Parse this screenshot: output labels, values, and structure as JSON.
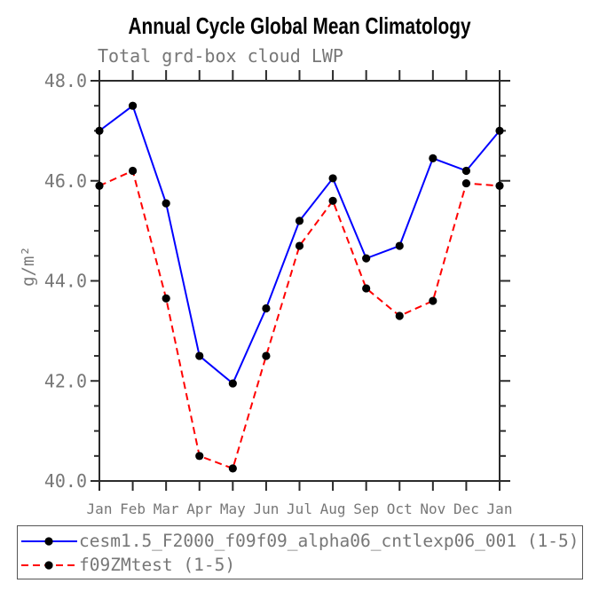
{
  "chart_data": {
    "type": "line",
    "title": "Annual Cycle Global Mean Climatology",
    "subtitle": "Total grd-box cloud LWP",
    "xlabel": "",
    "ylabel": "g/m²",
    "categories": [
      "Jan",
      "Feb",
      "Mar",
      "Apr",
      "May",
      "Jun",
      "Jul",
      "Aug",
      "Sep",
      "Oct",
      "Nov",
      "Dec",
      "Jan"
    ],
    "series": [
      {
        "name": "cesm1.5_F2000_f09f09_alpha06_cntlexp06_001 (1-5)",
        "color": "#0000ff",
        "style": "solid",
        "marker": "circle",
        "marker_color": "#000000",
        "values": [
          47.0,
          47.5,
          45.55,
          42.5,
          41.95,
          43.45,
          45.2,
          46.05,
          44.45,
          44.7,
          46.45,
          46.2,
          47.0
        ]
      },
      {
        "name": "f09ZMtest (1-5)",
        "color": "#ff0000",
        "style": "dashed",
        "marker": "circle",
        "marker_color": "#000000",
        "values": [
          45.9,
          46.2,
          43.65,
          40.5,
          40.25,
          42.5,
          44.7,
          45.6,
          43.85,
          43.3,
          43.6,
          45.95,
          45.9
        ]
      }
    ],
    "ylim": [
      40.0,
      48.0
    ],
    "yticks_major": [
      40.0,
      42.0,
      44.0,
      46.0,
      48.0
    ],
    "ytick_labels": [
      "40.0",
      "42.0",
      "44.0",
      "46.0",
      "48.0"
    ],
    "ytick_minor_step": 0.5,
    "grid": false,
    "legend_position": "bottom",
    "axis_color": "#2b2b2b",
    "text_color": "#777777"
  }
}
